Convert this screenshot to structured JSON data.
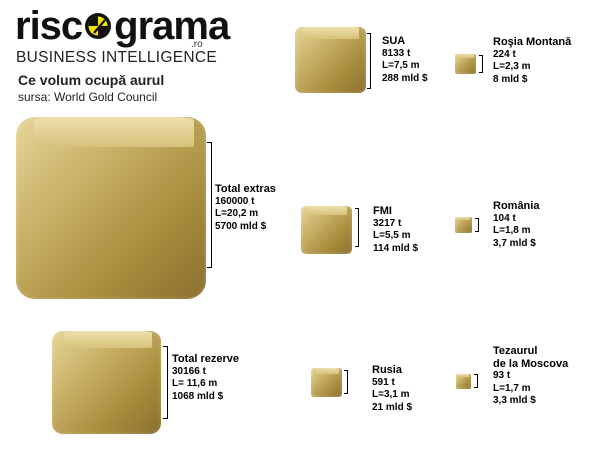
{
  "logo": {
    "part1": "risc",
    "part2": "grama",
    "tld": ".ro",
    "tagline": "BUSINESS INTELLIGENCE",
    "colors": {
      "text": "#111111",
      "accent": "#f2e600"
    }
  },
  "title": "Ce volum ocupă aurul",
  "source": "sursa: World Gold Council",
  "colors": {
    "gold_light": "#e6d69a",
    "gold_dark": "#8a7030"
  },
  "items": [
    {
      "id": "total-extras",
      "name": "Total extras",
      "mass": "160000 t",
      "edge": "L=20,2 m",
      "value": "5700 mld $"
    },
    {
      "id": "total-rezerve",
      "name": "Total rezerve",
      "mass": "30166 t",
      "edge": "L= 11,6 m",
      "value": "1068 mld $"
    },
    {
      "id": "sua",
      "name": "SUA",
      "mass": "8133 t",
      "edge": "L=7,5 m",
      "value": "288 mld $"
    },
    {
      "id": "fmi",
      "name": "FMI",
      "mass": "3217 t",
      "edge": "L=5,5 m",
      "value": "114 mld $"
    },
    {
      "id": "rusia",
      "name": "Rusia",
      "mass": "591 t",
      "edge": "L=3,1 m",
      "value": "21 mld $"
    },
    {
      "id": "rosia-montana",
      "name": "Roşia Montană",
      "mass": "224 t",
      "edge": "L=2,3 m",
      "value": "8 mld $"
    },
    {
      "id": "romania",
      "name": "România",
      "mass": "104 t",
      "edge": "L=1,8 m",
      "value": "3,7 mld $"
    },
    {
      "id": "tezaurul-moscova",
      "name": "Tezaurul",
      "name2": "de la Moscova",
      "mass": "93 t",
      "edge": "L=1,7 m",
      "value": "3,3 mld $"
    }
  ]
}
